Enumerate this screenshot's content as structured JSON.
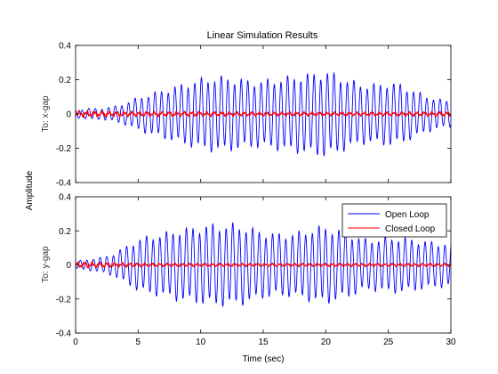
{
  "chart_data": {
    "type": "line",
    "title": "Linear Simulation Results",
    "xlabel": "Time (sec)",
    "ylabel": "Amplitude",
    "xlim": [
      0,
      30
    ],
    "xticks": [
      "0",
      "5",
      "10",
      "15",
      "20",
      "25",
      "30"
    ],
    "grid": false,
    "legend_position": "top-right",
    "legend": [
      "Open Loop",
      "Closed Loop"
    ],
    "colors": {
      "open_loop": "#0000ff",
      "closed_loop": "#ff0000",
      "axes": "#000000"
    },
    "subplots": [
      {
        "ylabel": "To: x-gap",
        "ylim": [
          -0.4,
          0.4
        ],
        "yticks": [
          "0.4",
          "0.2",
          "0",
          "-0.2",
          "-0.4"
        ],
        "show_legend": false,
        "series": [
          {
            "name": "Open Loop",
            "oscillation_period_sec": 0.53,
            "envelope": {
              "t": [
                0,
                1,
                2,
                3,
                4,
                5,
                6,
                7,
                8,
                9,
                10,
                11,
                12,
                13,
                14,
                15,
                16,
                17,
                18,
                19,
                20,
                21,
                22,
                23,
                24,
                25,
                26,
                27,
                28,
                29,
                30
              ],
              "amplitude": [
                0.02,
                0.03,
                0.03,
                0.04,
                0.06,
                0.09,
                0.11,
                0.13,
                0.15,
                0.17,
                0.19,
                0.2,
                0.2,
                0.19,
                0.18,
                0.18,
                0.19,
                0.2,
                0.21,
                0.22,
                0.23,
                0.21,
                0.18,
                0.16,
                0.16,
                0.17,
                0.16,
                0.13,
                0.1,
                0.08,
                0.07
              ]
            }
          },
          {
            "name": "Closed Loop",
            "oscillation_period_sec": 0.6,
            "envelope": {
              "t": [
                0,
                5,
                10,
                15,
                20,
                25,
                30
              ],
              "amplitude": [
                0.02,
                0.015,
                0.015,
                0.012,
                0.012,
                0.012,
                0.015
              ]
            }
          }
        ]
      },
      {
        "ylabel": "To: y-gap",
        "ylim": [
          -0.4,
          0.4
        ],
        "yticks": [
          "0.4",
          "0.2",
          "0",
          "-0.2",
          "-0.4"
        ],
        "show_legend": true,
        "series": [
          {
            "name": "Open Loop",
            "oscillation_period_sec": 0.53,
            "envelope": {
              "t": [
                0,
                1,
                2,
                3,
                4,
                5,
                6,
                7,
                8,
                9,
                10,
                11,
                12,
                13,
                14,
                15,
                16,
                17,
                18,
                19,
                20,
                21,
                22,
                23,
                24,
                25,
                26,
                27,
                28,
                29,
                30
              ],
              "amplitude": [
                0.02,
                0.03,
                0.04,
                0.06,
                0.1,
                0.14,
                0.16,
                0.17,
                0.19,
                0.2,
                0.21,
                0.22,
                0.22,
                0.22,
                0.2,
                0.18,
                0.17,
                0.17,
                0.18,
                0.2,
                0.21,
                0.19,
                0.17,
                0.14,
                0.14,
                0.15,
                0.15,
                0.14,
                0.13,
                0.12,
                0.12
              ]
            }
          },
          {
            "name": "Closed Loop",
            "oscillation_period_sec": 0.6,
            "envelope": {
              "t": [
                0,
                5,
                10,
                15,
                20,
                25,
                30
              ],
              "amplitude": [
                0.02,
                0.012,
                0.01,
                0.01,
                0.01,
                0.01,
                0.01
              ]
            }
          }
        ]
      }
    ]
  }
}
